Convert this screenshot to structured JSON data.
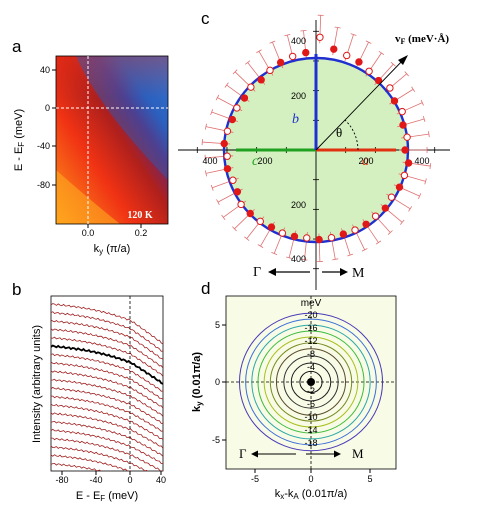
{
  "panels": {
    "a": {
      "label": "a",
      "ylabel": "E - E",
      "ylabel_sub": "F",
      "ylabel_unit": " (meV)",
      "xlabel": "k",
      "xlabel_sub": "y",
      "xlabel_unit": " (π/a)",
      "temperature": "120 K",
      "yticks": [
        "40",
        "0",
        "-40",
        "-80"
      ],
      "xticks": [
        "0.0",
        "0.2"
      ]
    },
    "b": {
      "label": "b",
      "ylabel": "Intensity (arbitrary units)",
      "xlabel": "E - E",
      "xlabel_sub": "F",
      "xlabel_unit": " (meV)",
      "xticks": [
        "-80",
        "-40",
        "0",
        "40"
      ]
    },
    "c": {
      "label": "c",
      "vf_label": "v",
      "vf_sub": "F",
      "vf_unit": " (meV·Å)",
      "theta": "θ",
      "axis_a": "a",
      "axis_b": "b",
      "axis_c": "c",
      "ticks_h_left": [
        "400",
        "200"
      ],
      "ticks_h_right": [
        "200",
        "400"
      ],
      "ticks_v_top": [
        "400",
        "200"
      ],
      "ticks_v_bottom": [
        "200",
        "400"
      ],
      "gamma": "Γ",
      "m": "M"
    },
    "d": {
      "label": "d",
      "unit": "meV",
      "ylabel": "k",
      "ylabel_sub": "y",
      "ylabel_unit": " (0.01π/a)",
      "xlabel": "k",
      "xlabel_sub": "x",
      "xlabel_mid": "-k",
      "xlabel_sub2": "A",
      "xlabel_unit": " (0.01π/a)",
      "xticks": [
        "-5",
        "0",
        "5"
      ],
      "yticks": [
        "5",
        "0",
        "-5"
      ],
      "contours_upper": [
        "-20",
        "-16",
        "-12",
        "-8",
        "-4"
      ],
      "contours_lower": [
        "-2",
        "-6",
        "-10",
        "-14",
        "-18"
      ],
      "gamma": "Γ",
      "m": "M"
    }
  },
  "chart_data": [
    {
      "panel": "a",
      "type": "heatmap",
      "xlabel": "ky (π/a)",
      "ylabel": "E - EF (meV)",
      "xlim": [
        -0.12,
        0.3
      ],
      "ylim": [
        -110,
        55
      ],
      "annotation": "120 K",
      "dashed_lines": {
        "x": 0.0,
        "y": 0.0
      }
    },
    {
      "panel": "b",
      "type": "line",
      "xlabel": "E - EF (meV)",
      "ylabel": "Intensity (arbitrary units)",
      "xlim": [
        -110,
        45
      ],
      "curve_count": 20,
      "highlighted_curve": 5,
      "dashed_line_x": 0
    },
    {
      "panel": "c",
      "type": "scatter",
      "radial_unit": "meV·Å",
      "fit_radius": 310,
      "axis_velocities": {
        "a": 275,
        "b": 360,
        "c": 275
      },
      "points": [
        {
          "theta": 0,
          "r": 300
        },
        {
          "theta": 8,
          "r": 310
        },
        {
          "theta": 16,
          "r": 305
        },
        {
          "theta": 24,
          "r": 318
        },
        {
          "theta": 32,
          "r": 312
        },
        {
          "theta": 40,
          "r": 325
        },
        {
          "theta": 48,
          "r": 315
        },
        {
          "theta": 56,
          "r": 320
        },
        {
          "theta": 64,
          "r": 330
        },
        {
          "theta": 72,
          "r": 335
        },
        {
          "theta": 80,
          "r": 345
        },
        {
          "theta": 88,
          "r": 380
        },
        {
          "theta": 96,
          "r": 330
        },
        {
          "theta": 104,
          "r": 325
        },
        {
          "theta": 112,
          "r": 318
        },
        {
          "theta": 120,
          "r": 310
        },
        {
          "theta": 128,
          "r": 300
        },
        {
          "theta": 136,
          "r": 305
        },
        {
          "theta": 144,
          "r": 298
        },
        {
          "theta": 152,
          "r": 302
        },
        {
          "theta": 160,
          "r": 300
        },
        {
          "theta": 168,
          "r": 305
        },
        {
          "theta": 176,
          "r": 310
        },
        {
          "theta": 184,
          "r": 300
        },
        {
          "theta": 192,
          "r": 305
        },
        {
          "theta": 200,
          "r": 298
        },
        {
          "theta": 208,
          "r": 300
        },
        {
          "theta": 216,
          "r": 312
        },
        {
          "theta": 224,
          "r": 308
        },
        {
          "theta": 232,
          "r": 305
        },
        {
          "theta": 240,
          "r": 300
        },
        {
          "theta": 248,
          "r": 302
        },
        {
          "theta": 256,
          "r": 300
        },
        {
          "theta": 264,
          "r": 298
        },
        {
          "theta": 272,
          "r": 302
        },
        {
          "theta": 280,
          "r": 300
        },
        {
          "theta": 288,
          "r": 298
        },
        {
          "theta": 296,
          "r": 300
        },
        {
          "theta": 304,
          "r": 302
        },
        {
          "theta": 312,
          "r": 300
        },
        {
          "theta": 320,
          "r": 305
        },
        {
          "theta": 328,
          "r": 300
        },
        {
          "theta": 336,
          "r": 308
        },
        {
          "theta": 344,
          "r": 310
        },
        {
          "theta": 352,
          "r": 315
        }
      ]
    },
    {
      "panel": "d",
      "type": "line",
      "xlabel": "kx-kA (0.01π/a)",
      "ylabel": "ky (0.01π/a)",
      "xlim": [
        -7,
        7
      ],
      "ylim": [
        -7,
        7
      ],
      "contour_levels": [
        -2,
        -4,
        -6,
        -8,
        -10,
        -12,
        -14,
        -16,
        -18,
        -20
      ],
      "contour_radius_units": [
        0.9,
        1.6,
        2.2,
        2.8,
        3.3,
        3.8,
        4.3,
        4.8,
        5.3,
        5.8
      ]
    }
  ]
}
